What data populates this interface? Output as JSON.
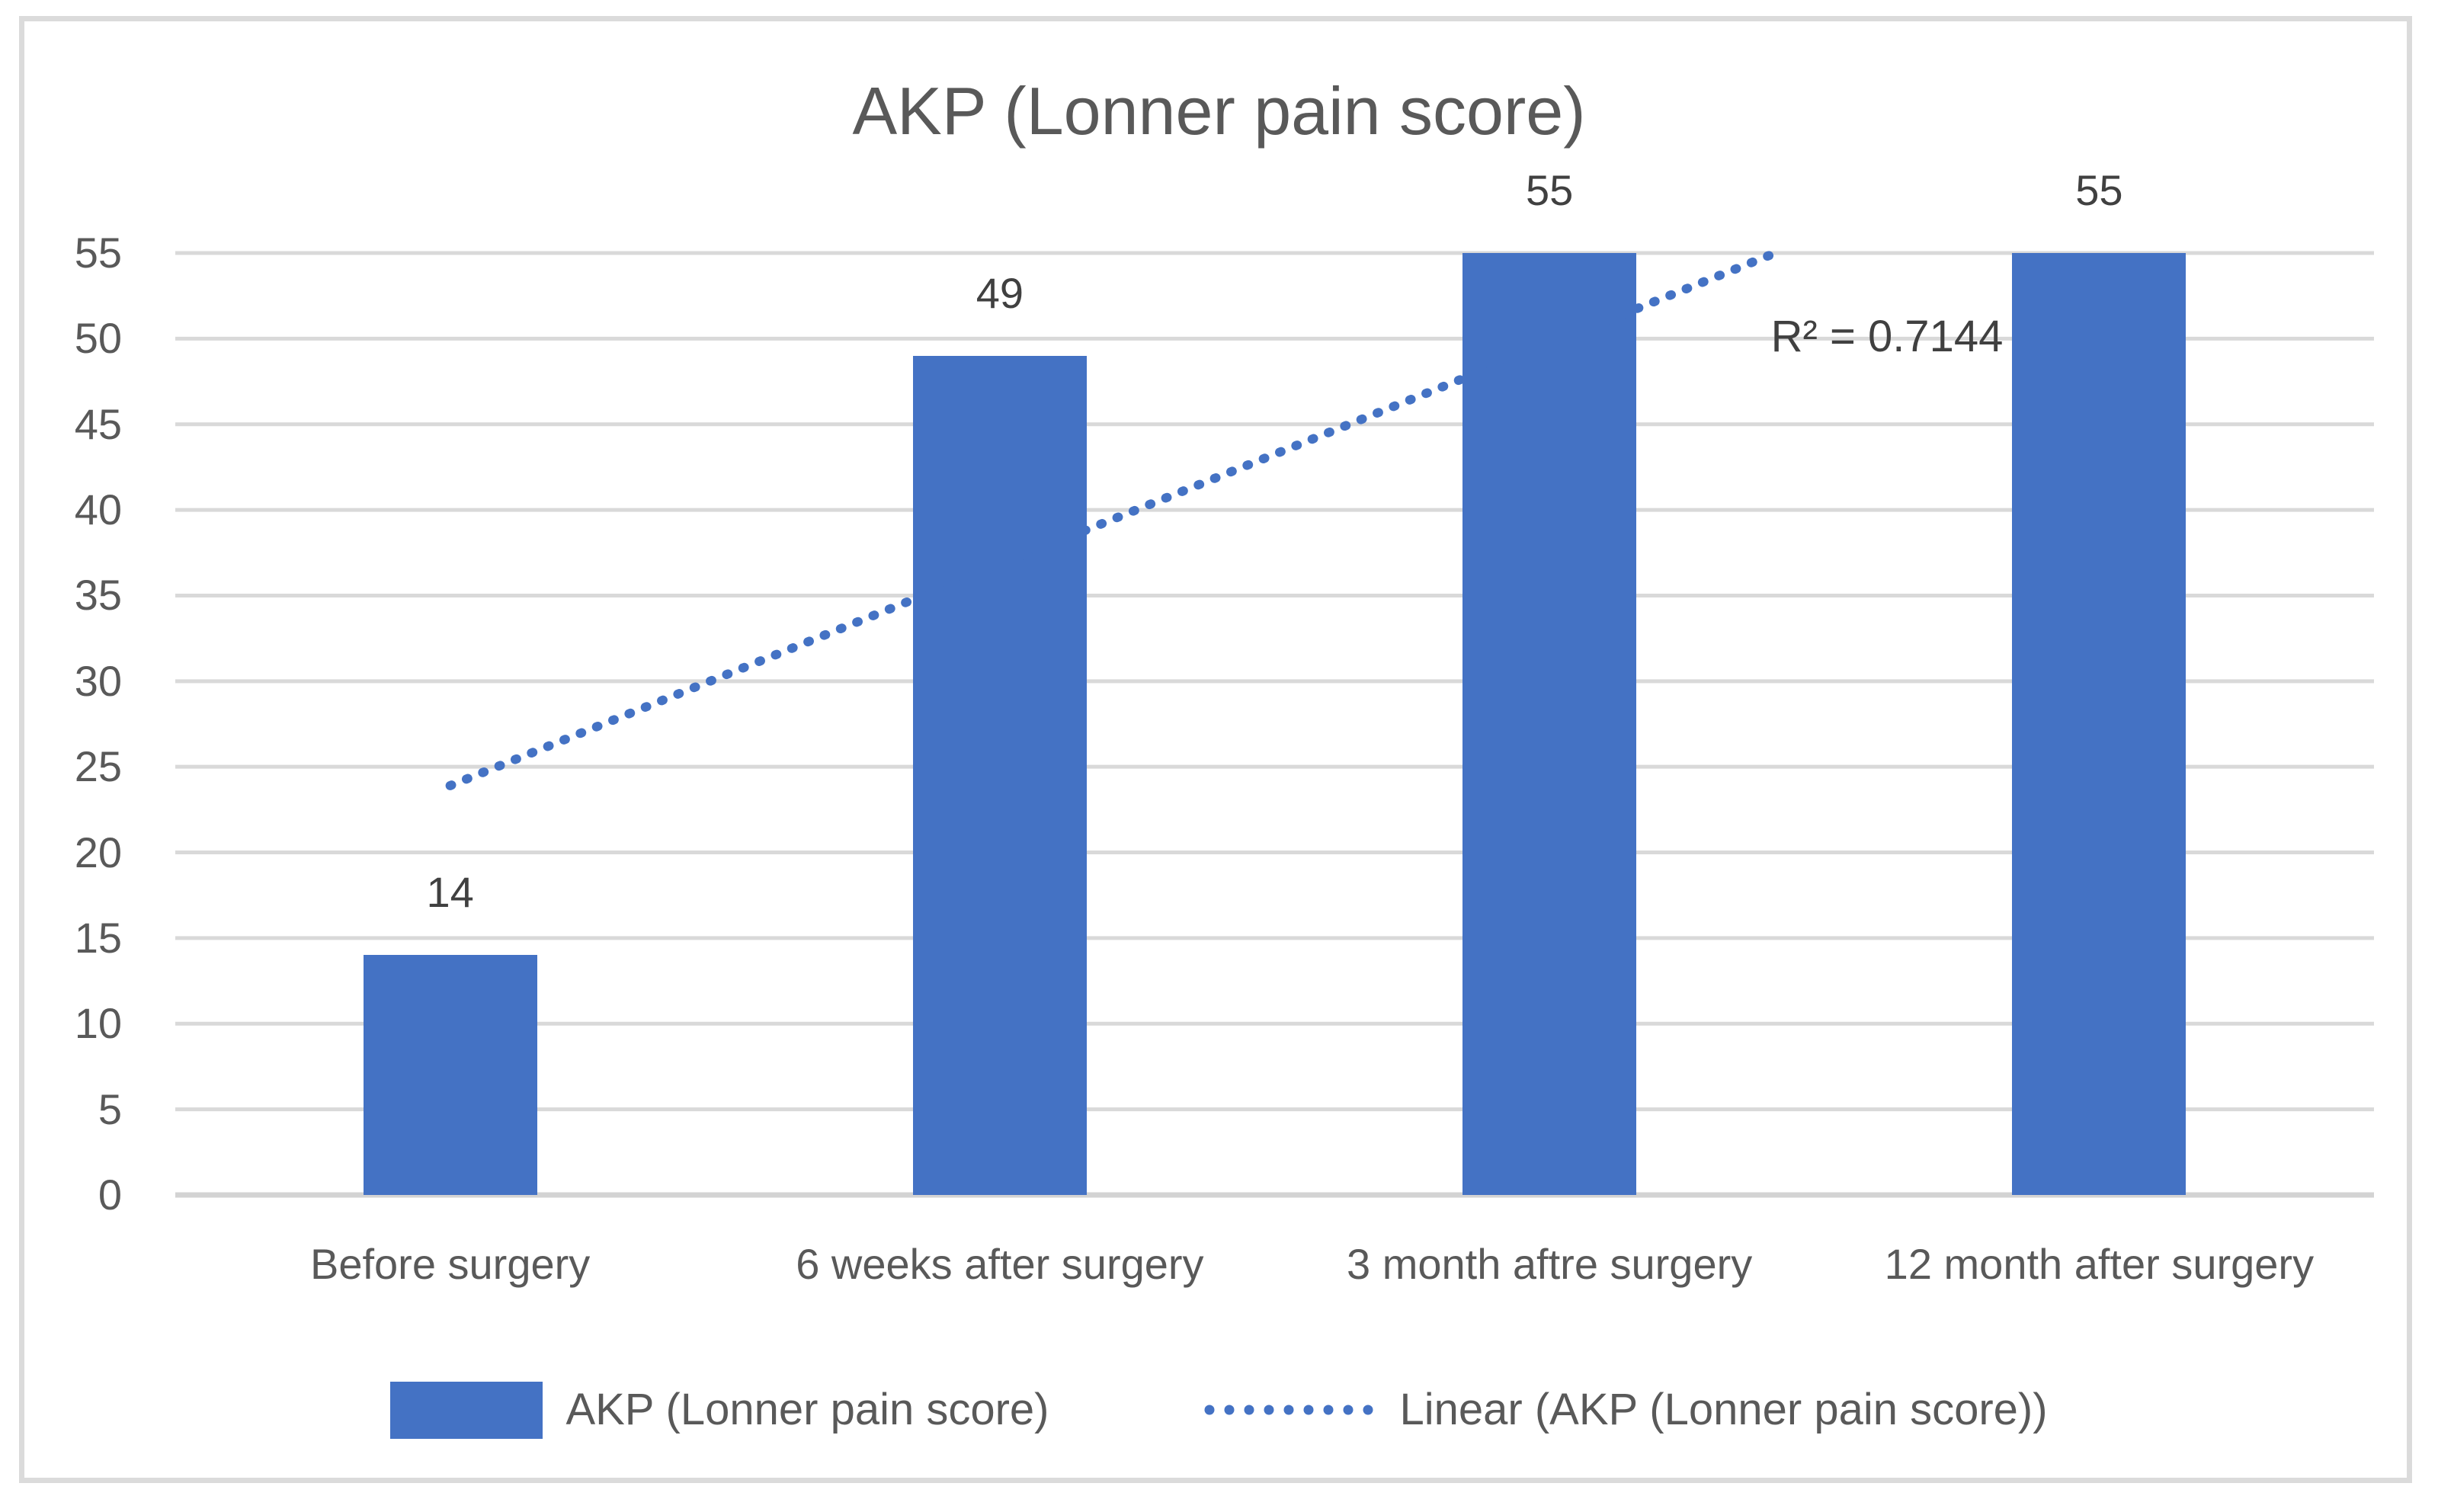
{
  "figure": {
    "background": "#FFFFFF",
    "border_color": "#DBDBDB"
  },
  "colors": {
    "series_blue": "#4472C4",
    "gridline": "#D9D9D9",
    "axis_line": "#D3D3D3",
    "axis_text": "#595959",
    "label_text": "#404040"
  },
  "chart_data": {
    "type": "bar",
    "title": "AKP (Lonner pain score)",
    "categories": [
      "Before surgery",
      "6 weeks after surgery",
      "3 month aftre surgery",
      "12 month after surgery"
    ],
    "series": [
      {
        "name": "AKP (Lonner pain score)",
        "values": [
          14,
          49,
          55,
          55
        ],
        "color": "#4472C4"
      }
    ],
    "data_labels": [
      "14",
      "49",
      "55",
      "55"
    ],
    "y_axis": {
      "min": 0,
      "max": 55,
      "step": 5,
      "ticks": [
        "0",
        "5",
        "10",
        "15",
        "20",
        "25",
        "30",
        "35",
        "40",
        "45",
        "50",
        "55"
      ]
    },
    "grid": true,
    "legend_position": "bottom",
    "trendline": {
      "name": "Linear (AKP (Lonner pain score))",
      "type": "linear",
      "r_squared_label": "R² = 0.7144",
      "r_squared_value": 0.7144,
      "color": "#4472C4",
      "style": "round-dot"
    },
    "legend": [
      "AKP (Lonner pain score)",
      "Linear (AKP (Lonner pain score))"
    ]
  }
}
